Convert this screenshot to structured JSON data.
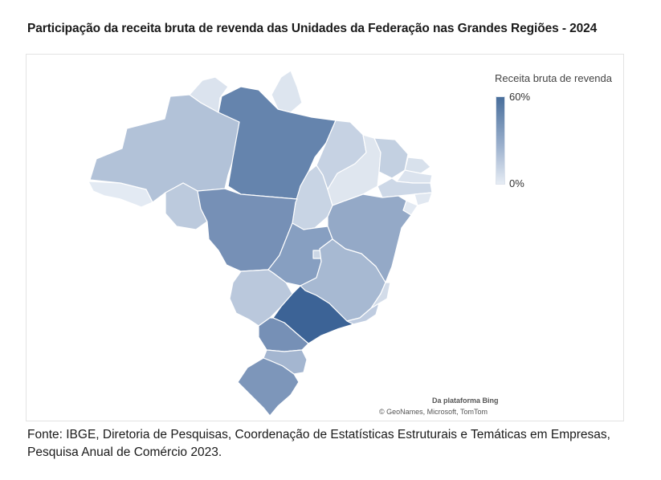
{
  "title": "Participação da receita bruta de revenda das Unidades da Federação nas Grandes Regiões - 2024",
  "legend": {
    "title": "Receita bruta de revenda",
    "max_label": "60%",
    "min_label": "0%",
    "color_max": "#486e9b",
    "color_min": "#e6ecf4"
  },
  "attribution": {
    "line1": "Da plataforma Bing",
    "line2": "© GeoNames, Microsoft, TomTom"
  },
  "source_text": "Fonte: IBGE, Diretoria de Pesquisas, Coordenação de Estatísticas Estruturais e Temáticas em Empresas, Pesquisa Anual de Comércio 2023.",
  "map": {
    "regions": [
      {
        "name": "AC",
        "color": "#e3eaf3"
      },
      {
        "name": "AM",
        "color": "#b2c2d8"
      },
      {
        "name": "RR",
        "color": "#dbe3ee"
      },
      {
        "name": "AP",
        "color": "#dde5ef"
      },
      {
        "name": "PA",
        "color": "#6584ad"
      },
      {
        "name": "RO",
        "color": "#bccadd"
      },
      {
        "name": "TO",
        "color": "#c8d4e4"
      },
      {
        "name": "MA",
        "color": "#c6d2e3"
      },
      {
        "name": "PI",
        "color": "#dfe6ef"
      },
      {
        "name": "CE",
        "color": "#c3d0e1"
      },
      {
        "name": "RN",
        "color": "#d8e1ec"
      },
      {
        "name": "PB",
        "color": "#dbe3ee"
      },
      {
        "name": "PE",
        "color": "#cdd8e7"
      },
      {
        "name": "AL",
        "color": "#e1e8f1"
      },
      {
        "name": "SE",
        "color": "#e2e9f2"
      },
      {
        "name": "BA",
        "color": "#94a9c7"
      },
      {
        "name": "MT",
        "color": "#7690b6"
      },
      {
        "name": "GO",
        "color": "#879fc1"
      },
      {
        "name": "DF",
        "color": "#cbd6e5"
      },
      {
        "name": "MS",
        "color": "#bac8dc"
      },
      {
        "name": "MG",
        "color": "#a7b9d2"
      },
      {
        "name": "ES",
        "color": "#d3dce9"
      },
      {
        "name": "RJ",
        "color": "#bfcce0"
      },
      {
        "name": "SP",
        "color": "#3c6396"
      },
      {
        "name": "PR",
        "color": "#7690b6"
      },
      {
        "name": "SC",
        "color": "#a4b6d0"
      },
      {
        "name": "RS",
        "color": "#7d96ba"
      }
    ]
  }
}
